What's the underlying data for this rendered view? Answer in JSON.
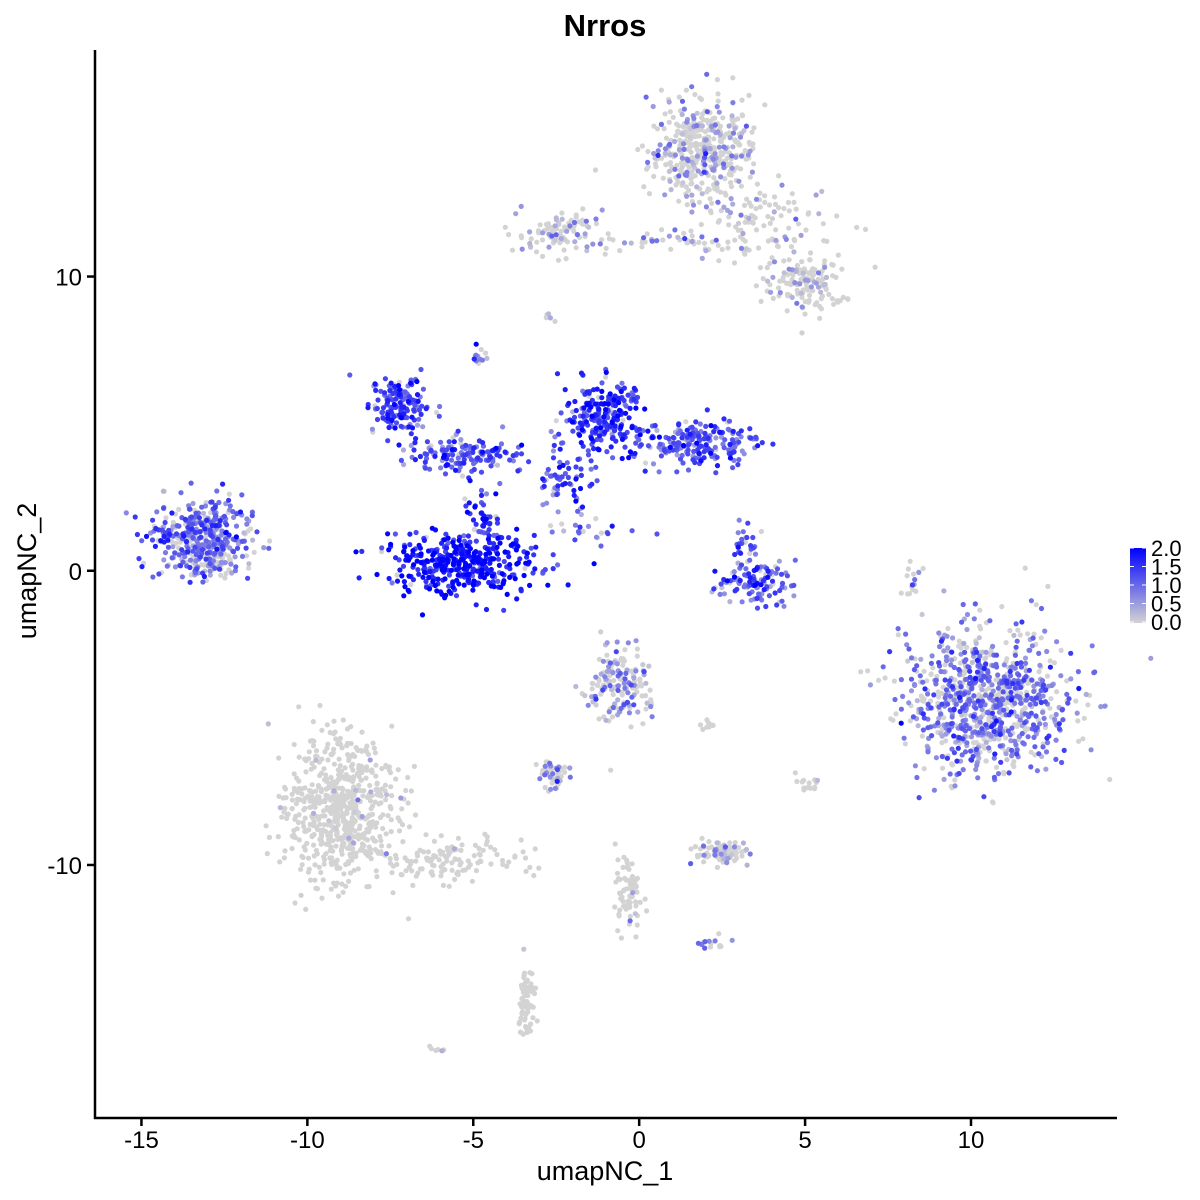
{
  "chart_data": {
    "type": "scatter",
    "title": "Nrros",
    "xlabel": "umapNC_1",
    "ylabel": "umapNC_2",
    "xlim": [
      -16.4,
      14.4
    ],
    "ylim": [
      -18.6,
      17.7
    ],
    "xticks": [
      -15,
      -10,
      -5,
      0,
      5,
      10
    ],
    "yticks": [
      -10,
      0,
      10
    ],
    "xtick_labels": [
      "-15",
      "-10",
      "-5",
      "0",
      "5",
      "10"
    ],
    "ytick_labels": [
      "-10",
      "0",
      "10"
    ],
    "grid": false,
    "color_scale": {
      "low": "#D3D3D3",
      "high": "#0000FF",
      "min": 0,
      "max": 2.0,
      "tick_labels": [
        "2.0",
        "1.5",
        "1.0",
        "0.5",
        "0.0"
      ],
      "ticks": [
        2.0,
        1.5,
        1.0,
        0.5,
        0.0
      ]
    },
    "legend_position": "right",
    "clusters": [
      {
        "center": [
          1.9,
          14.3
        ],
        "sd": [
          0.8,
          0.8
        ],
        "n": 420,
        "mean_expr": 0.35
      },
      {
        "center": [
          3.5,
          11.8
        ],
        "sd": [
          1.2,
          0.7
        ],
        "n": 120,
        "mean_expr": 0.3
      },
      {
        "center": [
          5.0,
          9.7
        ],
        "sd": [
          0.6,
          0.5
        ],
        "n": 130,
        "mean_expr": 0.3
      },
      {
        "center": [
          -2.6,
          11.6
        ],
        "sd": [
          0.6,
          0.35
        ],
        "n": 90,
        "mean_expr": 0.4
      },
      {
        "center": [
          0.5,
          11.2
        ],
        "sd": [
          1.2,
          0.15
        ],
        "n": 40,
        "mean_expr": 0.4
      },
      {
        "center": [
          -13.2,
          1.2
        ],
        "sd": [
          0.75,
          0.6
        ],
        "n": 380,
        "mean_expr": 0.9
      },
      {
        "center": [
          -7.2,
          5.6
        ],
        "sd": [
          0.45,
          0.5
        ],
        "n": 160,
        "mean_expr": 1.2
      },
      {
        "center": [
          -5.2,
          3.9
        ],
        "sd": [
          0.9,
          0.3
        ],
        "n": 140,
        "mean_expr": 1.1
      },
      {
        "center": [
          -5.3,
          0.2
        ],
        "sd": [
          1.1,
          0.5
        ],
        "n": 380,
        "mean_expr": 1.6
      },
      {
        "center": [
          -4.6,
          1.8
        ],
        "sd": [
          0.3,
          0.6
        ],
        "n": 50,
        "mean_expr": 1.4
      },
      {
        "center": [
          -1.1,
          5.2
        ],
        "sd": [
          0.5,
          0.6
        ],
        "n": 250,
        "mean_expr": 1.3
      },
      {
        "center": [
          1.8,
          4.3
        ],
        "sd": [
          0.9,
          0.4
        ],
        "n": 200,
        "mean_expr": 1.1
      },
      {
        "center": [
          -2.0,
          3.0
        ],
        "sd": [
          0.4,
          0.6
        ],
        "n": 40,
        "mean_expr": 1.2
      },
      {
        "center": [
          3.5,
          -0.4
        ],
        "sd": [
          0.6,
          0.35
        ],
        "n": 110,
        "mean_expr": 1.0
      },
      {
        "center": [
          3.2,
          0.8
        ],
        "sd": [
          0.2,
          0.4
        ],
        "n": 30,
        "mean_expr": 1.0
      },
      {
        "center": [
          10.5,
          -4.5
        ],
        "sd": [
          1.3,
          1.2
        ],
        "n": 900,
        "mean_expr": 0.75
      },
      {
        "center": [
          -9.0,
          -8.2
        ],
        "sd": [
          0.8,
          1.2
        ],
        "n": 650,
        "mean_expr": 0.02
      },
      {
        "center": [
          -5.5,
          -9.8
        ],
        "sd": [
          1.1,
          0.35
        ],
        "n": 120,
        "mean_expr": 0.03
      },
      {
        "center": [
          -0.6,
          -3.9
        ],
        "sd": [
          0.45,
          0.6
        ],
        "n": 170,
        "mean_expr": 0.5
      },
      {
        "center": [
          -2.6,
          -6.9
        ],
        "sd": [
          0.3,
          0.25
        ],
        "n": 50,
        "mean_expr": 0.6
      },
      {
        "center": [
          2.5,
          -9.6
        ],
        "sd": [
          0.4,
          0.2
        ],
        "n": 90,
        "mean_expr": 0.4
      },
      {
        "center": [
          -0.3,
          -11.0
        ],
        "sd": [
          0.2,
          0.8
        ],
        "n": 70,
        "mean_expr": 0.02
      },
      {
        "center": [
          -3.4,
          -14.6
        ],
        "sd": [
          0.15,
          0.7
        ],
        "n": 70,
        "mean_expr": 0.02
      },
      {
        "center": [
          -13.0,
          0.2
        ],
        "sd": [
          0.5,
          0.2
        ],
        "n": 60,
        "mean_expr": 0.5
      },
      {
        "center": [
          -2.6,
          3.0
        ],
        "sd": [
          0.2,
          1.0
        ],
        "n": 25,
        "mean_expr": 1.0
      },
      {
        "center": [
          -1.5,
          1.3
        ],
        "sd": [
          0.7,
          0.25
        ],
        "n": 20,
        "mean_expr": 0.9
      },
      {
        "center": [
          8.3,
          -0.3
        ],
        "sd": [
          0.15,
          0.4
        ],
        "n": 15,
        "mean_expr": 0.2
      },
      {
        "center": [
          5.1,
          -7.4
        ],
        "sd": [
          0.2,
          0.15
        ],
        "n": 15,
        "mean_expr": 0.1
      },
      {
        "center": [
          2.1,
          -5.3
        ],
        "sd": [
          0.1,
          0.1
        ],
        "n": 8,
        "mean_expr": 0.1
      },
      {
        "center": [
          -4.8,
          7.2
        ],
        "sd": [
          0.15,
          0.2
        ],
        "n": 12,
        "mean_expr": 0.8
      },
      {
        "center": [
          -2.7,
          8.6
        ],
        "sd": [
          0.1,
          0.1
        ],
        "n": 6,
        "mean_expr": 0.2
      },
      {
        "center": [
          2.3,
          -12.6
        ],
        "sd": [
          0.3,
          0.15
        ],
        "n": 15,
        "mean_expr": 0.5
      },
      {
        "center": [
          -6.0,
          -16.3
        ],
        "sd": [
          0.15,
          0.08
        ],
        "n": 6,
        "mean_expr": 0.0
      }
    ]
  }
}
